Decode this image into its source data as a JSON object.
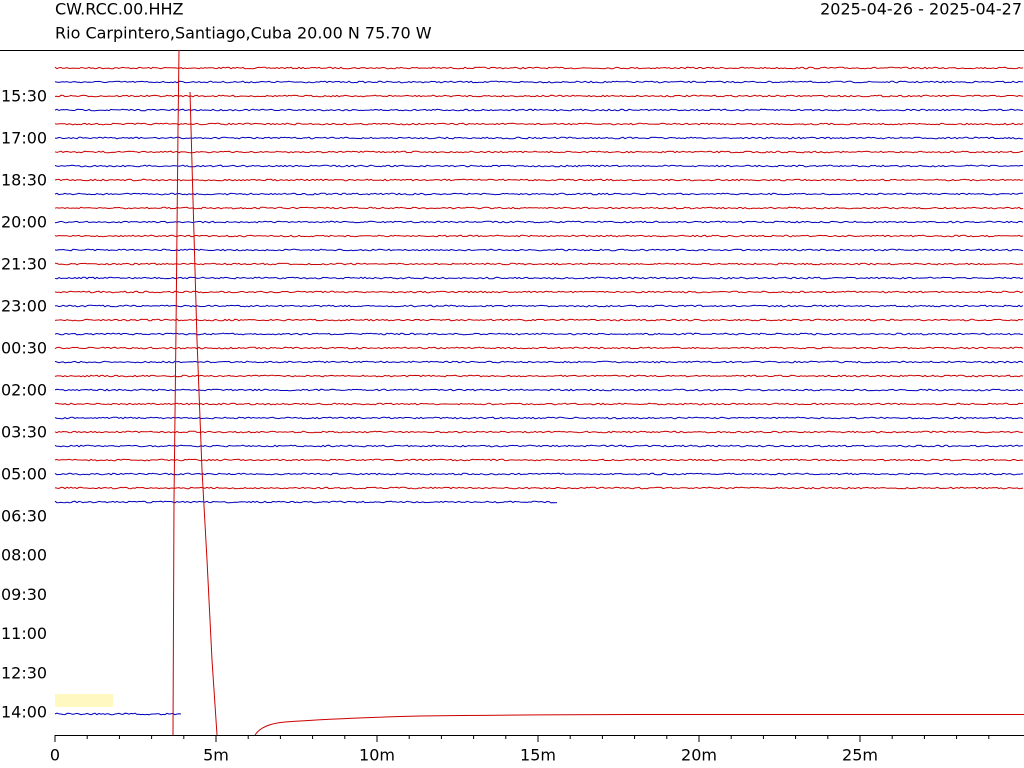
{
  "chart_data": {
    "type": "helicorder",
    "title": "CW.RCC.00.HHZ",
    "subtitle": "Rio Carpintero,Santiago,Cuba  20.00 N 75.70 W",
    "date_range": "2025-04-26 - 2025-04-27",
    "y_labels": [
      "15:30",
      "17:00",
      "18:30",
      "20:00",
      "21:30",
      "23:00",
      "00:30",
      "02:00",
      "03:30",
      "05:00",
      "06:30",
      "08:00",
      "09:30",
      "11:00",
      "12:30",
      "14:00"
    ],
    "xlim": [
      0,
      30
    ],
    "xticks": [
      0,
      {
        "value": 5,
        "label": "5m"
      },
      {
        "value": 10,
        "label": "10m"
      },
      {
        "value": 15,
        "label": "15m"
      },
      {
        "value": 20,
        "label": "20m"
      },
      {
        "value": 25,
        "label": "25m"
      }
    ],
    "colors": [
      "#cc0000",
      "#0000bb"
    ]
  }
}
